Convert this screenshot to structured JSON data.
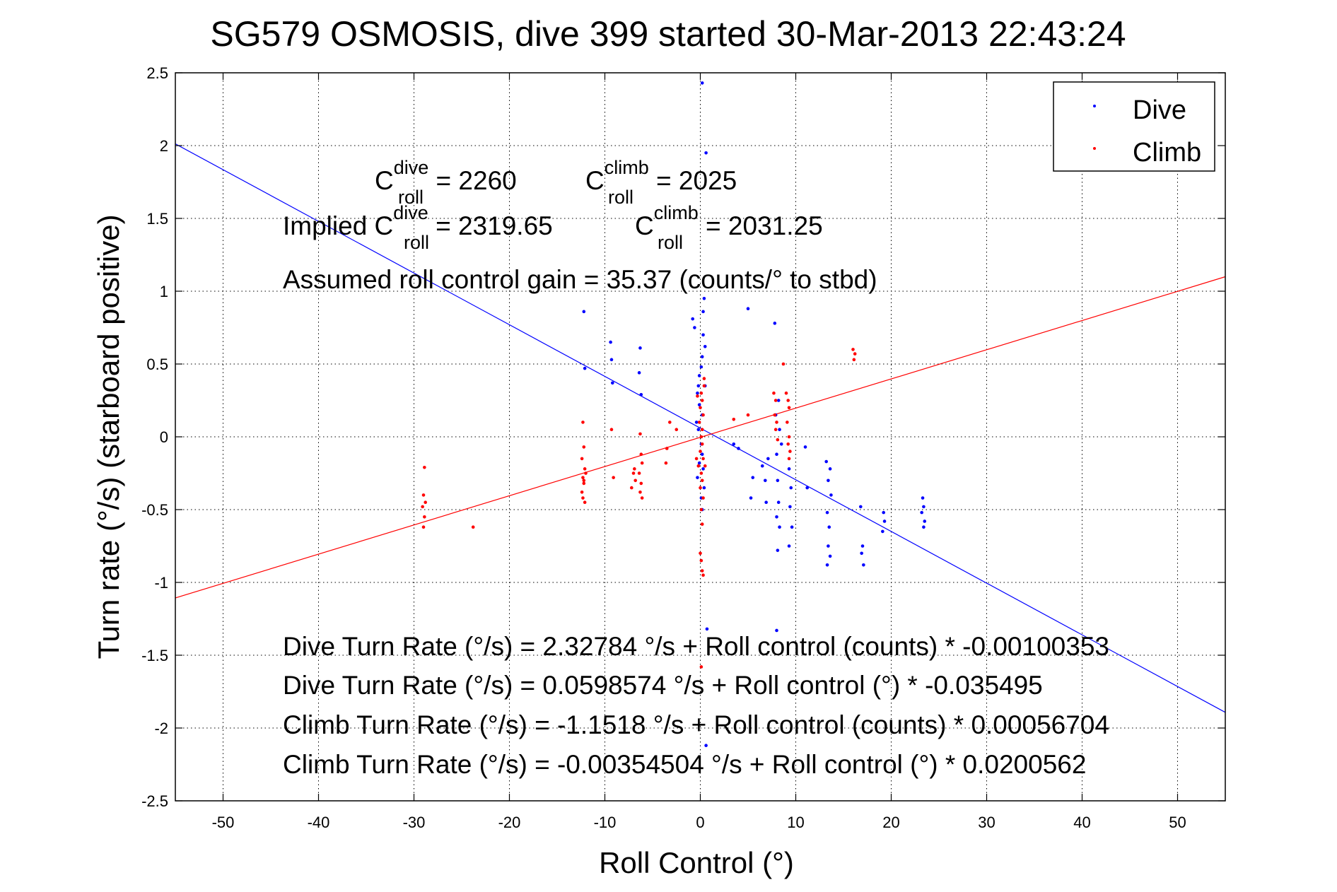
{
  "chart_data": {
    "type": "scatter",
    "title": "SG579 OSMOSIS, dive 399 started 30-Mar-2013 22:43:24",
    "xlabel": "Roll Control (°)",
    "ylabel": "Turn rate (°/s)  (starboard positive)",
    "xlim": [
      -55,
      55
    ],
    "ylim": [
      -2.5,
      2.5
    ],
    "xticks": [
      -50,
      -40,
      -30,
      -20,
      -10,
      0,
      10,
      20,
      30,
      40,
      50
    ],
    "yticks": [
      -2.5,
      -2,
      -1.5,
      -1,
      -0.5,
      0,
      0.5,
      1,
      1.5,
      2,
      2.5
    ],
    "grid": true,
    "legend_position": "top-right",
    "colors": {
      "dive": "#0000ff",
      "climb": "#ff0000"
    },
    "series": [
      {
        "name": "Dive",
        "color": "#0000ff",
        "points": [
          [
            -12.2,
            0.86
          ],
          [
            -9.4,
            0.65
          ],
          [
            -9.3,
            0.53
          ],
          [
            -6.3,
            0.61
          ],
          [
            -6.4,
            0.44
          ],
          [
            -12.1,
            0.47
          ],
          [
            -9.2,
            0.37
          ],
          [
            -6.2,
            0.29
          ],
          [
            -0.8,
            0.81
          ],
          [
            -0.6,
            0.75
          ],
          [
            0.2,
            2.43
          ],
          [
            0.6,
            1.95
          ],
          [
            0.3,
            0.86
          ],
          [
            0.4,
            0.95
          ],
          [
            0.3,
            0.7
          ],
          [
            0.5,
            0.62
          ],
          [
            0.2,
            0.55
          ],
          [
            0.1,
            0.48
          ],
          [
            -0.1,
            0.42
          ],
          [
            -0.2,
            0.35
          ],
          [
            -0.3,
            0.3
          ],
          [
            -0.1,
            0.22
          ],
          [
            0.2,
            0.15
          ],
          [
            -0.2,
            0.05
          ],
          [
            0.1,
            -0.05
          ],
          [
            0.2,
            -0.12
          ],
          [
            -0.1,
            -0.18
          ],
          [
            0.3,
            -0.22
          ],
          [
            -0.3,
            -0.28
          ],
          [
            0.5,
            0.35
          ],
          [
            -0.4,
            0.1
          ],
          [
            0.4,
            -0.35
          ],
          [
            0.1,
            -0.42
          ],
          [
            0.2,
            -0.5
          ],
          [
            5.0,
            0.88
          ],
          [
            7.8,
            0.78
          ],
          [
            8.2,
            0.25
          ],
          [
            8.3,
            0.05
          ],
          [
            8.0,
            -0.12
          ],
          [
            8.1,
            -0.3
          ],
          [
            8.2,
            -0.45
          ],
          [
            8.0,
            -0.55
          ],
          [
            8.3,
            -0.62
          ],
          [
            8.1,
            -0.78
          ],
          [
            7.9,
            0.15
          ],
          [
            8.5,
            -0.05
          ],
          [
            9.3,
            -0.22
          ],
          [
            9.5,
            -0.35
          ],
          [
            9.4,
            -0.48
          ],
          [
            9.6,
            -0.62
          ],
          [
            9.3,
            -0.75
          ],
          [
            11.0,
            -0.07
          ],
          [
            11.2,
            -0.35
          ],
          [
            6.5,
            -0.2
          ],
          [
            6.8,
            -0.3
          ],
          [
            6.9,
            -0.45
          ],
          [
            7.1,
            -0.15
          ],
          [
            5.5,
            -0.28
          ],
          [
            5.3,
            -0.42
          ],
          [
            13.2,
            -0.17
          ],
          [
            13.6,
            -0.22
          ],
          [
            13.4,
            -0.3
          ],
          [
            13.7,
            -0.4
          ],
          [
            13.3,
            -0.52
          ],
          [
            13.5,
            -0.62
          ],
          [
            13.4,
            -0.75
          ],
          [
            13.6,
            -0.82
          ],
          [
            13.3,
            -0.88
          ],
          [
            16.8,
            -0.48
          ],
          [
            17.0,
            -0.75
          ],
          [
            16.9,
            -0.8
          ],
          [
            17.1,
            -0.88
          ],
          [
            19.2,
            -0.52
          ],
          [
            19.3,
            -0.58
          ],
          [
            19.1,
            -0.65
          ],
          [
            23.3,
            -0.42
          ],
          [
            23.4,
            -0.48
          ],
          [
            23.2,
            -0.52
          ],
          [
            23.5,
            -0.58
          ],
          [
            23.4,
            -0.62
          ],
          [
            4.0,
            -0.08
          ],
          [
            3.5,
            -0.05
          ],
          [
            8.0,
            -1.33
          ],
          [
            0.7,
            -1.32
          ],
          [
            0.6,
            -2.12
          ]
        ]
      },
      {
        "name": "Climb",
        "color": "#ff0000",
        "points": [
          [
            -28.9,
            -0.21
          ],
          [
            -29.0,
            -0.4
          ],
          [
            -28.8,
            -0.45
          ],
          [
            -29.1,
            -0.48
          ],
          [
            -28.9,
            -0.55
          ],
          [
            -29.0,
            -0.62
          ],
          [
            -23.8,
            -0.62
          ],
          [
            -12.3,
            0.1
          ],
          [
            -12.2,
            -0.07
          ],
          [
            -12.4,
            -0.15
          ],
          [
            -12.1,
            -0.22
          ],
          [
            -12.3,
            -0.28
          ],
          [
            -12.2,
            -0.32
          ],
          [
            -12.4,
            -0.38
          ],
          [
            -12.3,
            -0.42
          ],
          [
            -12.1,
            -0.45
          ],
          [
            -12.2,
            -0.3
          ],
          [
            -12.0,
            -0.25
          ],
          [
            -9.3,
            0.05
          ],
          [
            -9.1,
            -0.28
          ],
          [
            -7.0,
            -0.25
          ],
          [
            -6.8,
            -0.3
          ],
          [
            -7.2,
            -0.35
          ],
          [
            -6.9,
            -0.22
          ],
          [
            -6.3,
            0.02
          ],
          [
            -6.2,
            -0.12
          ],
          [
            -6.1,
            -0.18
          ],
          [
            -6.4,
            -0.25
          ],
          [
            -6.2,
            -0.32
          ],
          [
            -6.3,
            -0.38
          ],
          [
            -6.1,
            -0.42
          ],
          [
            -3.5,
            -0.08
          ],
          [
            -3.6,
            -0.18
          ],
          [
            -3.2,
            0.1
          ],
          [
            -2.5,
            0.05
          ],
          [
            0.1,
            0.3
          ],
          [
            0.2,
            0.25
          ],
          [
            0.0,
            0.2
          ],
          [
            0.3,
            0.15
          ],
          [
            -0.1,
            0.1
          ],
          [
            0.2,
            0.05
          ],
          [
            0.1,
            0.0
          ],
          [
            0.2,
            -0.05
          ],
          [
            0.0,
            -0.1
          ],
          [
            0.3,
            -0.15
          ],
          [
            -0.2,
            -0.2
          ],
          [
            0.1,
            -0.25
          ],
          [
            0.2,
            -0.3
          ],
          [
            0.0,
            -0.35
          ],
          [
            0.3,
            -0.42
          ],
          [
            0.1,
            -0.5
          ],
          [
            0.2,
            -0.6
          ],
          [
            0.0,
            -0.8
          ],
          [
            0.1,
            -0.85
          ],
          [
            0.2,
            -0.92
          ],
          [
            0.4,
            0.35
          ],
          [
            -0.3,
            0.28
          ],
          [
            0.5,
            -0.2
          ],
          [
            -0.4,
            -0.15
          ],
          [
            0.4,
            0.4
          ],
          [
            0.1,
            -1.58
          ],
          [
            0.3,
            -0.95
          ],
          [
            3.5,
            0.12
          ],
          [
            5.0,
            0.15
          ],
          [
            7.7,
            0.3
          ],
          [
            7.9,
            0.25
          ],
          [
            7.8,
            0.15
          ],
          [
            8.0,
            0.1
          ],
          [
            7.9,
            0.05
          ],
          [
            8.1,
            -0.02
          ],
          [
            9.0,
            0.3
          ],
          [
            9.2,
            0.25
          ],
          [
            9.3,
            0.2
          ],
          [
            9.1,
            0.1
          ],
          [
            9.3,
            0.0
          ],
          [
            9.2,
            -0.05
          ],
          [
            9.4,
            -0.1
          ],
          [
            9.3,
            -0.15
          ],
          [
            8.7,
            0.5
          ],
          [
            16.1,
            0.53
          ],
          [
            16.2,
            0.57
          ],
          [
            16.0,
            0.6
          ]
        ]
      }
    ],
    "fit_lines": [
      {
        "series": "Dive",
        "color": "#0000ff",
        "intercept": 0.0598574,
        "slope": -0.035495
      },
      {
        "series": "Climb",
        "color": "#ff0000",
        "intercept": -0.00354504,
        "slope": 0.0200562
      }
    ],
    "annotations": {
      "c_dive_prefix": "C",
      "c_dive_sup": "dive",
      "c_dive_sub": "roll",
      "c_dive_value": " = 2260",
      "c_climb_prefix": "C",
      "c_climb_sup": "climb",
      "c_climb_sub": "roll",
      "c_climb_value": " = 2025",
      "implied_label": "Implied C",
      "implied_dive_sup": "dive",
      "implied_dive_sub": "roll",
      "implied_dive_value": " = 2319.65",
      "implied_climb_prefix": "C",
      "implied_climb_sup": "climb",
      "implied_climb_sub": "roll",
      "implied_climb_value": " = 2031.25",
      "gain": "Assumed roll control gain = 35.37 (counts/° to stbd)",
      "eq1": "Dive Turn Rate (°/s) = 2.32784 °/s + Roll control (counts) * -0.00100353",
      "eq2": "Dive Turn Rate (°/s) = 0.0598574 °/s + Roll control (°) * -0.035495",
      "eq3": "Climb Turn Rate (°/s) = -1.1518 °/s + Roll control (counts) * 0.00056704",
      "eq4": "Climb Turn Rate (°/s) = -0.00354504 °/s + Roll control (°) * 0.0200562"
    }
  }
}
